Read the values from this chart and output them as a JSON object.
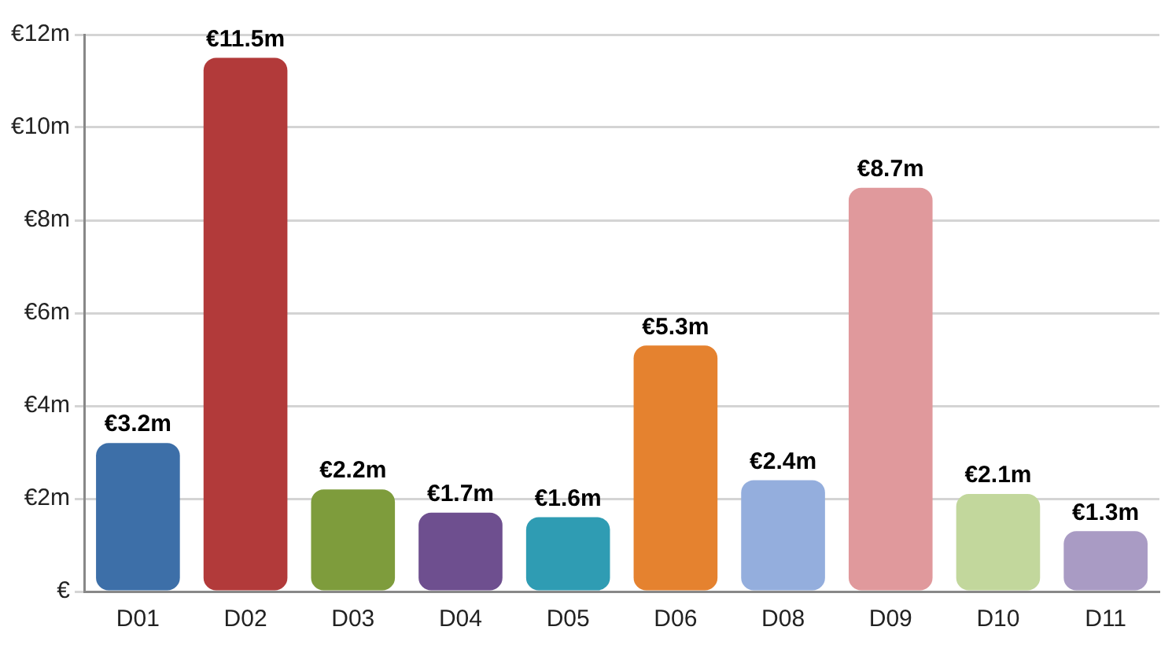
{
  "chart_data": {
    "type": "bar",
    "categories": [
      "D01",
      "D02",
      "D03",
      "D04",
      "D05",
      "D06",
      "D08",
      "D09",
      "D10",
      "D11"
    ],
    "values": [
      3.2,
      11.5,
      2.2,
      1.7,
      1.6,
      5.3,
      2.4,
      8.7,
      2.1,
      1.3
    ],
    "colors": [
      "#3d6fa8",
      "#b23a3a",
      "#7e9c3c",
      "#6e4f8f",
      "#2f9cb3",
      "#e5822f",
      "#94aedd",
      "#e0999c",
      "#c2d79c",
      "#a99bc4"
    ],
    "value_labels": [
      "€3.2m",
      "€11.5m",
      "€2.2m",
      "€1.7m",
      "€1.6m",
      "€5.3m",
      "€2.4m",
      "€8.7m",
      "€2.1m",
      "€1.3m"
    ],
    "ylim": [
      0,
      12
    ],
    "yticks": [
      {
        "value": 0,
        "label": "€"
      },
      {
        "value": 2,
        "label": "€2m"
      },
      {
        "value": 4,
        "label": "€4m"
      },
      {
        "value": 6,
        "label": "€6m"
      },
      {
        "value": 8,
        "label": "€8m"
      },
      {
        "value": 10,
        "label": "€10m"
      },
      {
        "value": 12,
        "label": "€12m"
      }
    ],
    "grid": "y",
    "legend": false
  }
}
